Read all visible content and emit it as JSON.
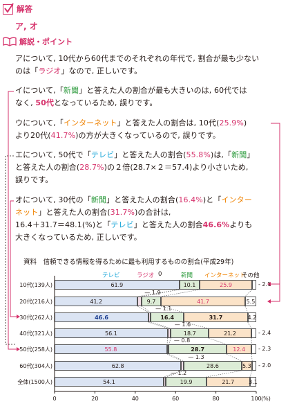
{
  "answer": {
    "heading": "解答",
    "value": "ア, オ"
  },
  "explanation": {
    "heading": "解説・ポイント",
    "a": {
      "line1": "アについて, 10代から60代までのそれぞれの年代で, 割合が最も少ない",
      "line2a": "のは「",
      "line2b": "ラジオ",
      "line2c": "」なので, 正しいです。"
    },
    "i": {
      "line1a": "イについて,「",
      "line1b": "新聞",
      "line1c": "」と答えた人の割合が最も大きいのは, 60代では",
      "line2a": "なく, ",
      "line2b": "50代",
      "line2c": "となっているため, 誤りです。"
    },
    "u": {
      "line1a": "ウについて,「",
      "line1b": "インターネット",
      "line1c": "」と答えた人の割合は, 10代(",
      "line1d": "25.9%",
      "line1e": ")",
      "line2a": "より20代(",
      "line2b": "41.7%",
      "line2c": ")の方が大きくなっているので, 誤りです。"
    },
    "e": {
      "line1a": "エについて, 50代で「",
      "line1b": "テレビ",
      "line1c": "」と答えた人の割合(",
      "line1d": "55.8%",
      "line1e": ")は,「",
      "line1f": "新聞",
      "line1g": "」",
      "line2a": "と答えた人の割合(",
      "line2b": "28.7%",
      "line2c": ")の２倍(28.7×２＝57.4)より小さいため,",
      "line3": "誤りです。"
    },
    "o": {
      "line1a": "オについて, 30代の「",
      "line1b": "新聞",
      "line1c": "」と答えた人の割合(",
      "line1d": "16.4%",
      "line1e": ")と「",
      "line1f": "インター",
      "line2a": "ネット",
      "line2b": "」と答えた人の割合(",
      "line2c": "31.7%",
      "line2d": ")の合計は,",
      "line3a": "16.4＋31.7＝48.1(%)と「",
      "line3b": "テレビ",
      "line3c": "」と答えた人の割合",
      "line3d": "46.6%",
      "line3e": "よりも",
      "line4": "大きくなっているため, 正しいです。"
    }
  },
  "chart": {
    "title": "資料　信頼できる情報を得るために最も利用するものの割合(平成29年)",
    "legend": {
      "tv": "テレビ",
      "radio": "ラジオ",
      "news": "新聞",
      "net": "インターネット",
      "other": "その他"
    },
    "radio_zero": "0",
    "x_unit": "(%)",
    "colors": {
      "tv": "#dbe4f3",
      "radio": "#f3dfe8",
      "news": "#dcecd6",
      "net": "#fbe3c8",
      "accent": "#d6336c",
      "green": "#2e9b3e",
      "orange": "#ef8200",
      "cyan": "#1aa6d8"
    }
  },
  "chart_data": {
    "type": "bar",
    "stacked": true,
    "orientation": "horizontal",
    "title": "資料　信頼できる情報を得るために最も利用するものの割合(平成29年)",
    "categories": [
      "10代(139人)",
      "20代(216人)",
      "30代(262人)",
      "40代(321人)",
      "50代(258人)",
      "60代(304人)",
      "全体(1500人)"
    ],
    "series": [
      {
        "name": "テレビ",
        "values": [
          61.9,
          41.2,
          46.6,
          56.1,
          55.8,
          62.8,
          54.1
        ]
      },
      {
        "name": "ラジオ",
        "values": [
          0,
          1.9,
          1.1,
          1.6,
          0.8,
          1.3,
          1.2
        ]
      },
      {
        "name": "新聞",
        "values": [
          10.1,
          9.7,
          16.4,
          18.7,
          28.7,
          28.6,
          19.9
        ]
      },
      {
        "name": "インターネット",
        "values": [
          25.9,
          41.7,
          31.7,
          21.2,
          12.4,
          5.3,
          21.7
        ]
      },
      {
        "name": "その他",
        "values": [
          2.1,
          5.5,
          4.2,
          2.4,
          2.3,
          2.0,
          3.1
        ]
      }
    ],
    "value_labels": [
      [
        "61.9",
        "0",
        "10.1",
        "25.9",
        "2.1"
      ],
      [
        "41.2",
        "1.9",
        "9.7",
        "41.7",
        "5.5"
      ],
      [
        "46.6",
        "1.1",
        "16.4",
        "31.7",
        "4.2"
      ],
      [
        "56.1",
        "1.6",
        "18.7",
        "21.2",
        "2.4"
      ],
      [
        "55.8",
        "0.8",
        "28.7",
        "12.4",
        "2.3"
      ],
      [
        "62.8",
        "1.3",
        "28.6",
        "5.3",
        "2.0"
      ],
      [
        "54.1",
        "1.2",
        "19.9",
        "21.7",
        "3.1"
      ]
    ],
    "xlim": [
      0,
      100
    ],
    "xticks": [
      "0",
      "20",
      "40",
      "60",
      "80",
      "100"
    ],
    "xlabel": "(%)",
    "legend_position": "top"
  }
}
